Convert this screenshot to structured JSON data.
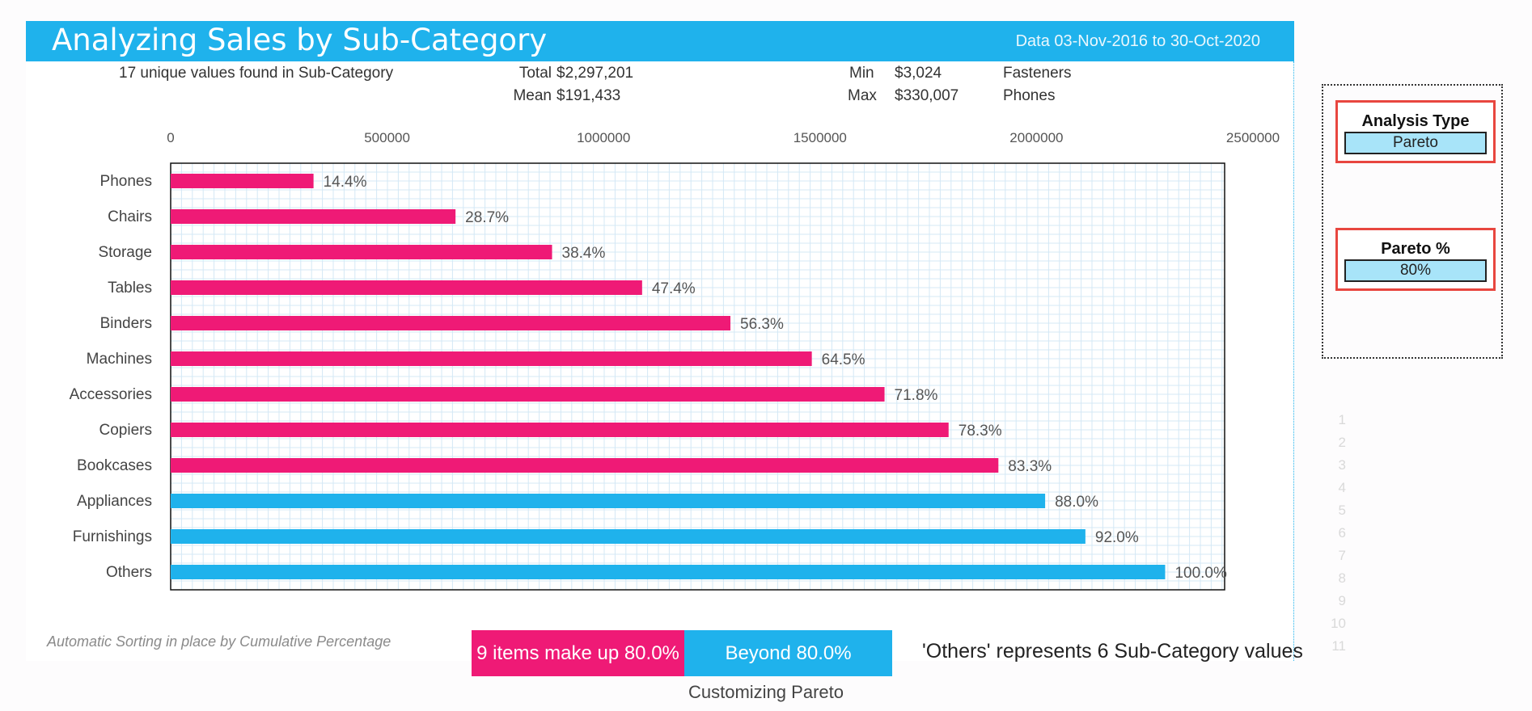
{
  "header": {
    "title": "Analyzing Sales by Sub-Category",
    "date_range": "Data 03-Nov-2016 to 30-Oct-2020"
  },
  "stats": {
    "unique": "17 unique values found in Sub-Category",
    "total_label": "Total",
    "total_value": "$2,297,201",
    "mean_label": "Mean",
    "mean_value": "$191,433",
    "min_label": "Min",
    "min_value": "$3,024",
    "min_item": "Fasteners",
    "max_label": "Max",
    "max_value": "$330,007",
    "max_item": "Phones"
  },
  "chart_data": {
    "type": "bar",
    "orientation": "horizontal",
    "categories": [
      "Phones",
      "Chairs",
      "Storage",
      "Tables",
      "Binders",
      "Machines",
      "Accessories",
      "Copiers",
      "Bookcases",
      "Appliances",
      "Furnishings",
      "Others"
    ],
    "values": [
      330007,
      658000,
      881000,
      1089000,
      1293000,
      1481000,
      1649000,
      1797000,
      1912000,
      2020000,
      2113000,
      2297201
    ],
    "data_labels": [
      "14.4%",
      "28.7%",
      "38.4%",
      "47.4%",
      "56.3%",
      "64.5%",
      "71.8%",
      "78.3%",
      "83.3%",
      "88.0%",
      "92.0%",
      "100.0%"
    ],
    "colors": [
      "#ef1a76",
      "#ef1a76",
      "#ef1a76",
      "#ef1a76",
      "#ef1a76",
      "#ef1a76",
      "#ef1a76",
      "#ef1a76",
      "#ef1a76",
      "#1fb2ec",
      "#1fb2ec",
      "#1fb2ec"
    ],
    "xticks": [
      "0",
      "500000",
      "1000000",
      "1500000",
      "2000000",
      "2500000"
    ],
    "xlim": [
      0,
      2500000
    ],
    "x_axis_position": "top",
    "grid": true,
    "title": "",
    "xlabel": "",
    "ylabel": ""
  },
  "legend": {
    "within": "9 items make up 80.0%",
    "beyond": "Beyond 80.0%",
    "within_color": "#ef1a76",
    "beyond_color": "#1fb2ec"
  },
  "footnote": "Automatic Sorting in place by Cumulative Percentage",
  "others_note": "'Others' represents 6 Sub-Category values",
  "controls": {
    "analysis_type_label": "Analysis Type",
    "analysis_type_value": "Pareto",
    "pareto_label": "Pareto %",
    "pareto_value": "80%"
  },
  "row_numbers": [
    "1",
    "2",
    "3",
    "4",
    "5",
    "6",
    "7",
    "8",
    "9",
    "10",
    "11"
  ],
  "caption": "Customizing Pareto"
}
